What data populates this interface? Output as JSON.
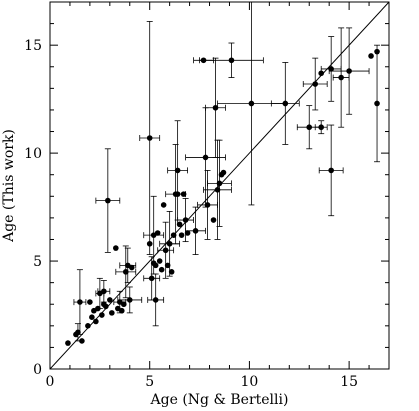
{
  "chart_data": {
    "type": "scatter",
    "title": "",
    "xlabel": "Age (Ng & Bertelli)",
    "ylabel": "Age (This work)",
    "xlim": [
      0,
      17
    ],
    "ylim": [
      0,
      17
    ],
    "x_ticks": [
      0,
      5,
      10,
      15
    ],
    "y_ticks": [
      0,
      5,
      10,
      15
    ],
    "x_tick_labels": [
      "0",
      "5",
      "10",
      "15"
    ],
    "y_tick_labels": [
      "0",
      "5",
      "10",
      "15"
    ],
    "grid": false,
    "reference_line": {
      "from": [
        0,
        0
      ],
      "to": [
        17,
        17
      ],
      "label": "one-to-one line"
    },
    "series": [
      {
        "marker": "filled-circle",
        "color": "#000000",
        "points": [
          {
            "x": 0.9,
            "y": 1.2
          },
          {
            "x": 1.3,
            "y": 1.6
          },
          {
            "x": 1.4,
            "y": 1.7,
            "xerr": 0,
            "yerr": 0.4
          },
          {
            "x": 1.5,
            "y": 3.1,
            "xerr": 0.3,
            "yerr": 1.5
          },
          {
            "x": 1.6,
            "y": 1.3
          },
          {
            "x": 1.9,
            "y": 2.0
          },
          {
            "x": 2.0,
            "y": 3.1
          },
          {
            "x": 2.1,
            "y": 2.4
          },
          {
            "x": 2.2,
            "y": 2.7
          },
          {
            "x": 2.3,
            "y": 2.2
          },
          {
            "x": 2.4,
            "y": 2.8
          },
          {
            "x": 2.5,
            "y": 3.5,
            "xerr": 0.2,
            "yerr": 0.7
          },
          {
            "x": 2.6,
            "y": 2.5
          },
          {
            "x": 2.7,
            "y": 3.6,
            "xerr": 0.3,
            "yerr": 0.5
          },
          {
            "x": 2.7,
            "y": 3.0
          },
          {
            "x": 2.8,
            "y": 2.9
          },
          {
            "x": 2.9,
            "y": 7.8,
            "xerr": 0.6,
            "yerr": 2.4
          },
          {
            "x": 3.0,
            "y": 3.2
          },
          {
            "x": 3.1,
            "y": 2.6
          },
          {
            "x": 3.3,
            "y": 5.6
          },
          {
            "x": 3.4,
            "y": 2.8
          },
          {
            "x": 3.5,
            "y": 3.1,
            "xerr": 0.3,
            "yerr": 0.5
          },
          {
            "x": 3.6,
            "y": 2.7
          },
          {
            "x": 3.7,
            "y": 3.0
          },
          {
            "x": 3.8,
            "y": 4.5,
            "xerr": 0.5,
            "yerr": 1.2
          },
          {
            "x": 3.9,
            "y": 4.8,
            "xerr": 0.4,
            "yerr": 0.8
          },
          {
            "x": 4.0,
            "y": 3.2,
            "xerr": 0.6,
            "yerr": 0.6
          },
          {
            "x": 4.1,
            "y": 4.7
          },
          {
            "x": 5.0,
            "y": 10.7,
            "xerr": 0.5,
            "yerr": 5.4
          },
          {
            "x": 5.0,
            "y": 5.8
          },
          {
            "x": 5.1,
            "y": 4.2,
            "xerr": 0.4,
            "yerr": 1.0
          },
          {
            "x": 5.2,
            "y": 6.2,
            "xerr": 0.5,
            "yerr": 1.8
          },
          {
            "x": 5.2,
            "y": 4.9
          },
          {
            "x": 5.3,
            "y": 3.2,
            "xerr": 0.4,
            "yerr": 1.2
          },
          {
            "x": 5.3,
            "y": 4.8
          },
          {
            "x": 5.4,
            "y": 6.3
          },
          {
            "x": 5.5,
            "y": 5.0
          },
          {
            "x": 5.6,
            "y": 4.6
          },
          {
            "x": 5.7,
            "y": 7.6
          },
          {
            "x": 5.8,
            "y": 5.5,
            "xerr": 0.4,
            "yerr": 1.3
          },
          {
            "x": 5.9,
            "y": 4.8
          },
          {
            "x": 6.0,
            "y": 5.8,
            "xerr": 0.5,
            "yerr": 1.5
          },
          {
            "x": 6.1,
            "y": 4.5
          },
          {
            "x": 6.2,
            "y": 6.2
          },
          {
            "x": 6.3,
            "y": 8.1,
            "xerr": 0.5,
            "yerr": 2.3
          },
          {
            "x": 6.4,
            "y": 8.1
          },
          {
            "x": 6.4,
            "y": 9.2,
            "xerr": 0.5,
            "yerr": 2.3
          },
          {
            "x": 6.5,
            "y": 6.7
          },
          {
            "x": 6.6,
            "y": 6.2
          },
          {
            "x": 6.7,
            "y": 8.1
          },
          {
            "x": 6.8,
            "y": 6.9,
            "xerr": 0.4,
            "yerr": 1.0
          },
          {
            "x": 6.9,
            "y": 6.3
          },
          {
            "x": 7.3,
            "y": 6.4,
            "xerr": 0.5,
            "yerr": 1.1
          },
          {
            "x": 7.7,
            "y": 14.3,
            "xerr": 0.5,
            "yerr": 0
          },
          {
            "x": 7.8,
            "y": 9.8,
            "xerr": 1.0,
            "yerr": 2.3
          },
          {
            "x": 7.9,
            "y": 7.6,
            "xerr": 0.5,
            "yerr": 1.6
          },
          {
            "x": 8.2,
            "y": 6.9
          },
          {
            "x": 8.3,
            "y": 12.1,
            "xerr": 0.5,
            "yerr": 2.3
          },
          {
            "x": 8.4,
            "y": 8.3,
            "xerr": 0.7,
            "yerr": 2.3
          },
          {
            "x": 8.5,
            "y": 8.6,
            "xerr": 0.6,
            "yerr": 2.0
          },
          {
            "x": 8.6,
            "y": 9.0
          },
          {
            "x": 8.7,
            "y": 9.1
          },
          {
            "x": 9.1,
            "y": 14.3,
            "xerr": 1.6,
            "yerr": 0.8
          },
          {
            "x": 10.1,
            "y": 12.3,
            "xerr": 1.7,
            "yerr": 4.7
          },
          {
            "x": 11.8,
            "y": 12.3,
            "xerr": 0.7,
            "yerr": 1.9
          },
          {
            "x": 13.0,
            "y": 11.2,
            "xerr": 0.6,
            "yerr": 1.0
          },
          {
            "x": 13.3,
            "y": 13.2,
            "xerr": 0.6,
            "yerr": 1.2
          },
          {
            "x": 13.6,
            "y": 11.2,
            "xerr": 0.3,
            "yerr": 0.3
          },
          {
            "x": 13.6,
            "y": 13.7
          },
          {
            "x": 14.1,
            "y": 9.2,
            "xerr": 0.6,
            "yerr": 2.1
          },
          {
            "x": 14.1,
            "y": 13.9,
            "xerr": 0.5,
            "yerr": 1.5
          },
          {
            "x": 14.6,
            "y": 13.5,
            "xerr": 0.4,
            "yerr": 2.3
          },
          {
            "x": 15.0,
            "y": 13.8,
            "xerr": 1.0,
            "yerr": 2.0
          },
          {
            "x": 16.1,
            "y": 14.5
          },
          {
            "x": 16.4,
            "y": 14.7
          },
          {
            "x": 16.4,
            "y": 12.3,
            "xerr": 0,
            "yerr": 2.7
          }
        ]
      }
    ]
  }
}
